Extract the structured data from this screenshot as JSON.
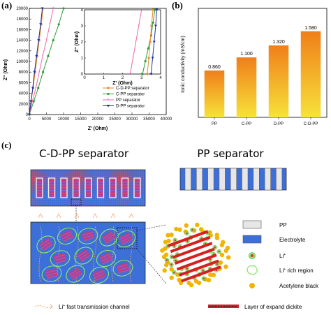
{
  "panel_labels": {
    "a": "(a)",
    "b": "(b)",
    "c": "(c)"
  },
  "chart_data": [
    {
      "type": "line",
      "xlabel": "Z' (Ohm)",
      "ylabel": "Z'' (Ohm)",
      "xlim": [
        0,
        40000
      ],
      "ylim": [
        0,
        20000
      ],
      "x_ticks": [
        "0",
        "5000",
        "10000",
        "15000",
        "20000",
        "25000",
        "30000",
        "35000",
        "40000"
      ],
      "y_ticks": [
        "0",
        "2000",
        "4000",
        "6000",
        "8000",
        "10000",
        "12000",
        "14000",
        "16000",
        "18000",
        "20000"
      ],
      "series": [
        {
          "name": "C-D-PP separator",
          "color": "#e8892b",
          "marker": "circle",
          "x": [
            0,
            500,
            1100,
            1700,
            2300,
            2900,
            3500,
            4000
          ],
          "y": [
            0,
            2500,
            5000,
            8000,
            11000,
            14000,
            17000,
            20000
          ]
        },
        {
          "name": "C-PP separator",
          "color": "#2e9b3a",
          "marker": "circle",
          "x": [
            0,
            1300,
            2600,
            4000,
            5500,
            7000,
            8600,
            10000
          ],
          "y": [
            0,
            2500,
            5000,
            8000,
            11000,
            14000,
            17000,
            20000
          ]
        },
        {
          "name": "PP separator",
          "color": "#f06aa8",
          "marker": "star",
          "x": [
            0,
            900,
            1900,
            2900,
            3900,
            5000,
            6000,
            7000
          ],
          "y": [
            0,
            2500,
            5000,
            8000,
            11000,
            14000,
            17000,
            20000
          ]
        },
        {
          "name": "D-PP separator",
          "color": "#1f2f9e",
          "marker": "triangle-down",
          "x": [
            0,
            500,
            1000,
            1500,
            2100,
            2700,
            3300,
            3800
          ],
          "y": [
            0,
            2500,
            5000,
            8000,
            11000,
            14000,
            17000,
            20000
          ]
        }
      ],
      "inset": {
        "xlabel": "Z' (Ohm)",
        "ylabel": "Z'' (Ohm)",
        "xlim": [
          0,
          4
        ],
        "ylim": [
          0,
          4
        ],
        "x_ticks": [
          "0",
          "1",
          "2",
          "3",
          "4"
        ],
        "y_ticks": [
          "0",
          "1",
          "2",
          "3",
          "4"
        ],
        "series": [
          {
            "name": "PP separator",
            "color": "#f06aa8",
            "x": [
              2.4,
              2.55,
              2.7,
              2.85,
              3.0
            ],
            "y": [
              0,
              1,
              2,
              3,
              4
            ]
          },
          {
            "name": "C-PP separator",
            "color": "#2e9b3a",
            "x": [
              3.05,
              3.2,
              3.35,
              3.5,
              3.6,
              3.7
            ],
            "y": [
              0,
              0.8,
              1.6,
              2.4,
              3.2,
              4
            ]
          },
          {
            "name": "C-D-PP separator",
            "color": "#e8892b",
            "x": [
              3.3,
              3.38,
              3.45,
              3.52,
              3.6
            ],
            "y": [
              0,
              1,
              2,
              3,
              4
            ]
          },
          {
            "name": "D-PP separator",
            "color": "#1f2f9e",
            "x": [
              3.5,
              3.58,
              3.66,
              3.74,
              3.8
            ],
            "y": [
              0,
              1,
              2,
              3,
              4
            ]
          }
        ]
      }
    },
    {
      "type": "bar",
      "categories": [
        "PP",
        "C-PP",
        "D-PP",
        "C-D-PP"
      ],
      "values": [
        0.86,
        1.1,
        1.32,
        1.58
      ],
      "value_labels": [
        "0.860",
        "1.100",
        "1.320",
        "1.580"
      ],
      "ylabel": "Ionic conductivity (mS/cm)",
      "ylim": [
        0,
        2.0
      ],
      "colors": {
        "top": "#f07f1a",
        "bottom": "#f7e23a"
      }
    }
  ],
  "schematic": {
    "title_cdpp": "C-D-PP separator",
    "title_pp": "PP separator",
    "legend": [
      {
        "label": "PP",
        "swatch": "gray-box"
      },
      {
        "label": "Electrolyte",
        "swatch": "blue-box"
      },
      {
        "label": "Li+",
        "swatch": "li-ion"
      },
      {
        "label": "Li+ rich region",
        "swatch": "green-ring"
      },
      {
        "label": "Acetylene black",
        "swatch": "yellow-dot"
      }
    ],
    "bottom_legend": {
      "channel": "Li+ fast transmission channel",
      "dickite": "Layer of expand dickite"
    },
    "colors": {
      "electrolyte": "#3d6fd8",
      "pp": "#e6e6e6",
      "li_ring": "#8ee86a",
      "dickite": "#d62020",
      "acetylene": "#f2b400",
      "arrow": "#f7a25a"
    }
  }
}
